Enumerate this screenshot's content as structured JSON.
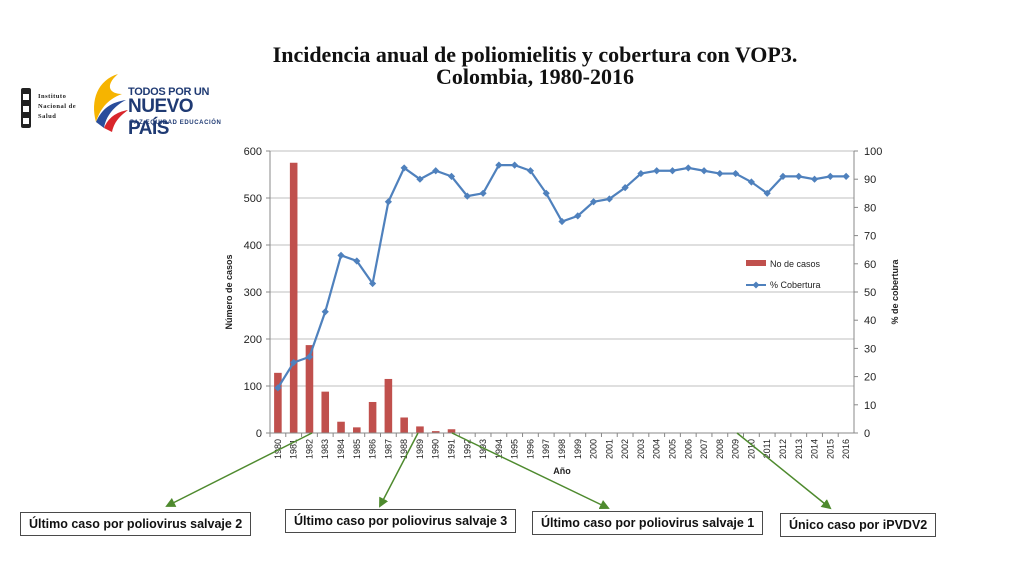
{
  "title_line1": "Incidencia anual de poliomielitis y cobertura con VOP3.",
  "title_line2": "Colombia, 1980-2016",
  "logo_instituto": {
    "line1": "Instituto",
    "line2": "Nacional de",
    "line3": "Salud"
  },
  "logo_gobierno": {
    "line1": "TODOS POR UN",
    "line2": "NUEVO PAÍS",
    "line3": "PAZ  EQUIDAD  EDUCACIÓN"
  },
  "annotations": [
    {
      "text": "Último caso por poliovirus salvaje 2",
      "year": "1982"
    },
    {
      "text": "Último caso por poliovirus salvaje 3",
      "year": "1990"
    },
    {
      "text": "Último caso por poliovirus salvaje 1",
      "year": "1991"
    },
    {
      "text": "Único caso por iPVDV2",
      "year": "2009"
    }
  ],
  "colors": {
    "bars": "#c0504d",
    "line": "#4f81bd",
    "arrows": "#4e8a2e",
    "grid": "#bfbfbf"
  },
  "chart_data": {
    "type": "bar+line",
    "title": "",
    "xlabel": "Año",
    "ylabel": "Número de casos",
    "y2label": "% de cobertura",
    "ylim": [
      0,
      600
    ],
    "yticks": [
      "0",
      "100",
      "200",
      "300",
      "400",
      "500",
      "600"
    ],
    "y2lim": [
      0,
      100
    ],
    "y2ticks": [
      "0",
      "10",
      "20",
      "30",
      "40",
      "50",
      "60",
      "70",
      "80",
      "90",
      "100"
    ],
    "grid": true,
    "legend_position": "right",
    "categories": [
      "1980",
      "1981",
      "1982",
      "1983",
      "1984",
      "1985",
      "1986",
      "1987",
      "1988",
      "1989",
      "1990",
      "1991",
      "1992",
      "1993",
      "1994",
      "1995",
      "1996",
      "1997",
      "1998",
      "1999",
      "2000",
      "2001",
      "2002",
      "2003",
      "2004",
      "2005",
      "2006",
      "2007",
      "2008",
      "2009",
      "2010",
      "2011",
      "2012",
      "2013",
      "2014",
      "2015",
      "2016"
    ],
    "series": [
      {
        "name": "No de casos",
        "type": "bar",
        "axis": "left",
        "values": [
          128,
          575,
          187,
          88,
          24,
          12,
          66,
          115,
          33,
          14,
          4,
          8,
          0,
          0,
          0,
          0,
          0,
          0,
          0,
          0,
          0,
          0,
          0,
          0,
          0,
          0,
          0,
          0,
          0,
          0,
          0,
          0,
          0,
          0,
          0,
          0,
          0
        ]
      },
      {
        "name": "% Cobertura",
        "type": "line",
        "axis": "right",
        "values": [
          16,
          25,
          27,
          43,
          63,
          61,
          53,
          82,
          94,
          90,
          93,
          91,
          84,
          85,
          95,
          95,
          93,
          85,
          75,
          77,
          82,
          83,
          87,
          92,
          93,
          93,
          94,
          93,
          92,
          92,
          89,
          85,
          91,
          91,
          90,
          91,
          91
        ]
      }
    ]
  }
}
